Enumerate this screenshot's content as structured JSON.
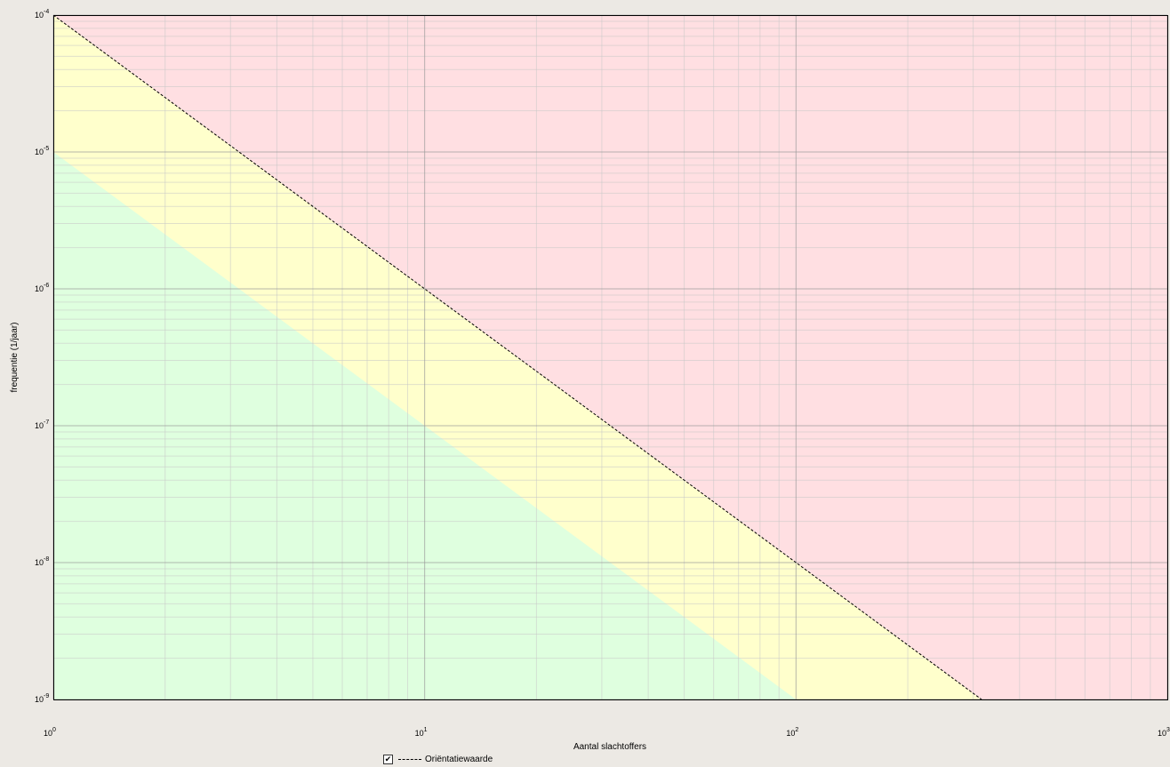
{
  "chart_data": {
    "type": "line",
    "title": "",
    "xlabel": "Aantal slachtoffers",
    "ylabel": "frequentie (1/jaar)",
    "xscale": "log",
    "yscale": "log",
    "xlim": [
      1,
      1000
    ],
    "ylim": [
      1e-09,
      0.0001
    ],
    "grid": true,
    "x_ticks": [
      {
        "base": "10",
        "exp": "0",
        "value": 1
      },
      {
        "base": "10",
        "exp": "1",
        "value": 10
      },
      {
        "base": "10",
        "exp": "2",
        "value": 100
      },
      {
        "base": "10",
        "exp": "3",
        "value": 1000
      }
    ],
    "y_ticks": [
      {
        "base": "10",
        "exp": "-4",
        "value": 0.0001
      },
      {
        "base": "10",
        "exp": "-5",
        "value": 1e-05
      },
      {
        "base": "10",
        "exp": "-6",
        "value": 1e-06
      },
      {
        "base": "10",
        "exp": "-7",
        "value": 1e-07
      },
      {
        "base": "10",
        "exp": "-8",
        "value": 1e-08
      },
      {
        "base": "10",
        "exp": "-9",
        "value": 1e-09
      }
    ],
    "series": [
      {
        "name": "Oriëntatiewaarde",
        "style": "dashed",
        "color": "#000000",
        "x": [
          1,
          10,
          100,
          316
        ],
        "y": [
          0.0001,
          1e-06,
          1e-08,
          1e-09
        ]
      }
    ],
    "zones": [
      {
        "color": "#dfffdf",
        "lower_edge": "bottom",
        "upper_x": [
          1,
          10,
          100,
          200
        ],
        "upper_y": [
          1e-05,
          1e-07,
          1e-09,
          2.5e-10
        ]
      },
      {
        "color": "#ffffcc",
        "lower_edge": "green-upper",
        "upper_line": "series-0"
      },
      {
        "color": "#ffdfe2",
        "lower_edge": "series-0",
        "upper_edge": "top"
      }
    ],
    "legend": {
      "placement": "bottom-center",
      "checked": true,
      "check_glyph": "✔"
    }
  }
}
